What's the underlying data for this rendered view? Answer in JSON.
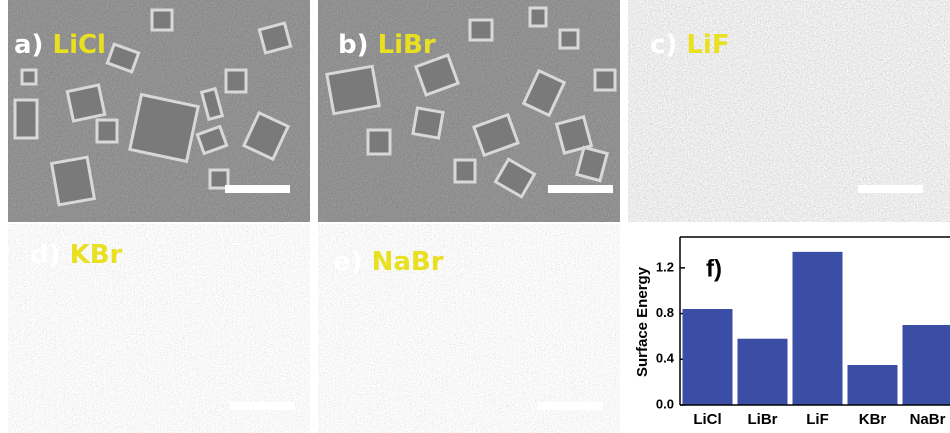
{
  "panels": [
    {
      "letter": "a)",
      "name": "LiCl"
    },
    {
      "letter": "b)",
      "name": "LiBr"
    },
    {
      "letter": "c)",
      "name": "LiF"
    },
    {
      "letter": "d)",
      "name": "KBr"
    },
    {
      "letter": "e)",
      "name": "NaBr"
    }
  ],
  "chart_data": {
    "type": "bar",
    "label": "f)",
    "y_label": "Surface Energy",
    "categories": [
      "LiCl",
      "LiBr",
      "LiF",
      "KBr",
      "NaBr"
    ],
    "values": [
      0.84,
      0.58,
      1.34,
      0.35,
      0.7
    ],
    "color": "#3b4ea6",
    "ylim": [
      0,
      1.47
    ],
    "yticks": [
      {
        "value": 0,
        "label": "0.0"
      },
      0.4,
      0.8,
      1.2
    ]
  }
}
